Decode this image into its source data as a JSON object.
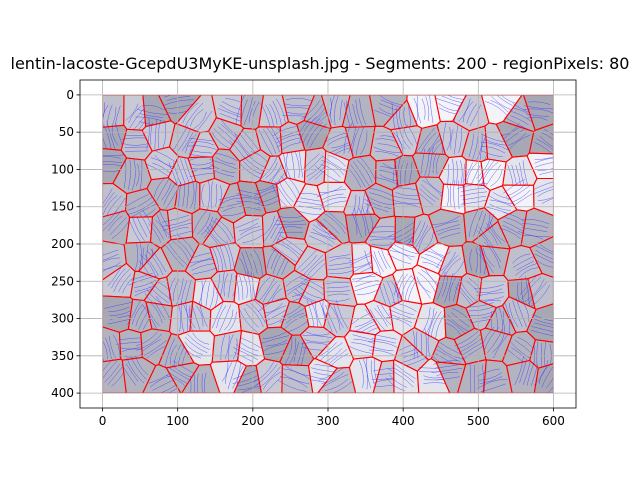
{
  "chart_data": {
    "type": "heatmap",
    "title": "lentin-lacoste-GcepdU3MyKE-unsplash.jpg - Segments: 200 - regionPixels: 80",
    "xlabel": "",
    "ylabel": "",
    "xlim": [
      -30,
      630
    ],
    "ylim": [
      420,
      -20
    ],
    "y_inverted": true,
    "image_extent": [
      0,
      600,
      400,
      0
    ],
    "x_ticks": [
      0,
      100,
      200,
      300,
      400,
      500,
      600
    ],
    "y_ticks": [
      0,
      50,
      100,
      150,
      200,
      250,
      300,
      350,
      400
    ],
    "grid": true,
    "segments_count": 200,
    "boundary_color": "#ff0000",
    "flow_line_color": "#3333ff",
    "shade_palette": [
      "#a8a8b4",
      "#b4b4c0",
      "#c0c0cc",
      "#cacad6",
      "#e4e4ec",
      "#f4f4f8"
    ],
    "rect_regions": [
      {
        "x0": 0,
        "x1": 600,
        "y0": 0,
        "y1": 400,
        "shade": 2
      },
      {
        "x0": 110,
        "x1": 210,
        "y0": 230,
        "y1": 380,
        "shade": 4
      },
      {
        "x0": 340,
        "x1": 450,
        "y0": 200,
        "y1": 260,
        "shade": 5
      },
      {
        "x0": 440,
        "x1": 600,
        "y0": 80,
        "y1": 150,
        "shade": 5
      },
      {
        "x0": 230,
        "x1": 340,
        "y0": 70,
        "y1": 170,
        "shade": 4
      },
      {
        "x0": 260,
        "x1": 470,
        "y0": 280,
        "y1": 380,
        "shade": 4
      },
      {
        "x0": 420,
        "x1": 600,
        "y0": 0,
        "y1": 20,
        "shade": 5
      },
      {
        "x0": 0,
        "x1": 110,
        "y0": 280,
        "y1": 400,
        "shade": 1
      },
      {
        "x0": 450,
        "x1": 600,
        "y0": 300,
        "y1": 400,
        "shade": 1
      },
      {
        "x0": 480,
        "x1": 600,
        "y0": 170,
        "y1": 220,
        "shade": 1
      }
    ],
    "seed": 7
  }
}
